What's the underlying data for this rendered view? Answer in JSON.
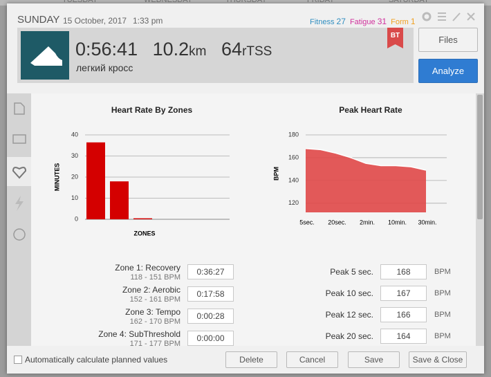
{
  "calendar_days": [
    "TUESDAY",
    "WEDNESDAY",
    "THURSDAY",
    "FRIDAY",
    "SATURDAY"
  ],
  "header": {
    "day": "SUNDAY",
    "date": "15 October, 2017",
    "time": "1:33 pm",
    "fitness_label": "Fitness",
    "fitness": 27,
    "fatigue_label": "Fatigue",
    "fatigue": 31,
    "form_label": "Form",
    "form": 1
  },
  "summary": {
    "duration": "0:56:41",
    "distance": "10.2",
    "distance_unit": "km",
    "tss": "64",
    "tss_unit": "rTSS",
    "title": "легкий кросс",
    "badge": "BT"
  },
  "buttons": {
    "files": "Files",
    "analyze": "Analyze"
  },
  "chart_data": [
    {
      "type": "bar",
      "title": "Heart Rate By Zones",
      "x_label": "ZONES",
      "y_label": "MINUTES",
      "categories": [
        null,
        null,
        null,
        null
      ],
      "values": [
        36.45,
        17.97,
        0.47,
        0
      ],
      "color": "#d40000",
      "ylim": [
        0,
        40
      ],
      "yticks": [
        0,
        10,
        20,
        30,
        40
      ],
      "grid": true
    },
    {
      "type": "area",
      "title": "Peak Heart Rate",
      "y_label": "BPM",
      "categories": [
        "5sec.",
        null,
        "20sec.",
        null,
        "2min.",
        null,
        "10min.",
        null,
        "30min."
      ],
      "values": [
        168,
        167,
        164,
        160,
        155,
        153,
        153,
        152,
        149
      ],
      "color": "#e04848",
      "ylim": [
        112,
        180
      ],
      "yticks": [
        120,
        140,
        160,
        180
      ],
      "grid": true
    }
  ],
  "zones": [
    {
      "name": "Zone 1: Recovery",
      "range": "118 - 151 BPM",
      "time": "0:36:27"
    },
    {
      "name": "Zone 2: Aerobic",
      "range": "152 - 161 BPM",
      "time": "0:17:58"
    },
    {
      "name": "Zone 3: Tempo",
      "range": "162 - 170 BPM",
      "time": "0:00:28"
    },
    {
      "name": "Zone 4: SubThreshold",
      "range": "171 - 177 BPM",
      "time": "0:00:00"
    }
  ],
  "peaks": [
    {
      "label": "Peak 5 sec.",
      "value": 168,
      "unit": "BPM"
    },
    {
      "label": "Peak 10 sec.",
      "value": 167,
      "unit": "BPM"
    },
    {
      "label": "Peak 12 sec.",
      "value": 166,
      "unit": "BPM"
    },
    {
      "label": "Peak 20 sec.",
      "value": 164,
      "unit": "BPM"
    }
  ],
  "footer": {
    "checkbox": "Automatically calculate planned values",
    "buttons": [
      "Delete",
      "Cancel",
      "Save",
      "Save & Close"
    ]
  }
}
